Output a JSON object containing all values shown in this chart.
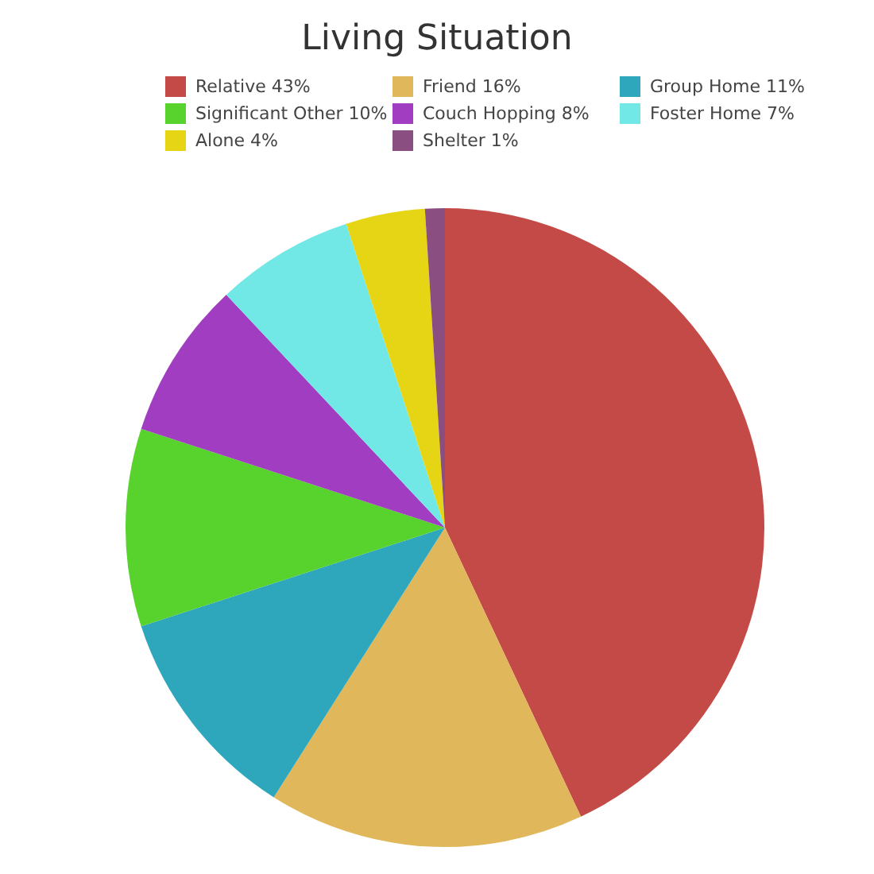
{
  "chart_data": {
    "type": "pie",
    "title": "Living Situation",
    "categories": [
      "Relative 43%",
      "Friend 16%",
      "Group Home 11%",
      "Significant Other 10%",
      "Couch Hopping 8%",
      "Foster Home 7%",
      "Alone 4%",
      "Shelter 1%"
    ],
    "values": [
      43,
      16,
      11,
      10,
      8,
      7,
      4,
      1
    ],
    "colors": [
      "#c34a47",
      "#e0b75a",
      "#2ea7bd",
      "#58d22c",
      "#a03dc0",
      "#71e8e6",
      "#e5d515",
      "#8a4f80"
    ],
    "legend": "top"
  }
}
